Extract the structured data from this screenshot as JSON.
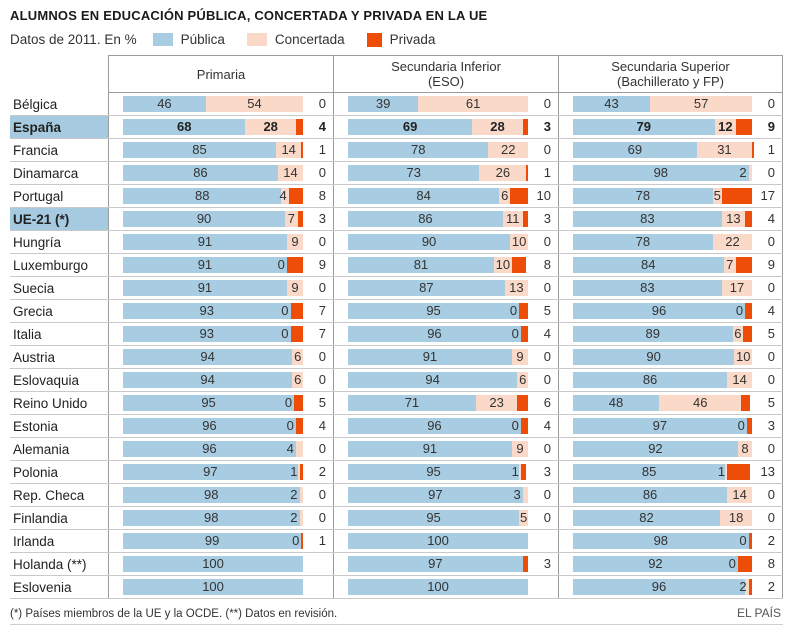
{
  "title": "ALUMNOS EN EDUCACIÓN PÚBLICA, CONCERTADA Y PRIVADA EN LA UE",
  "legend": {
    "note": "Datos de 2011. En %",
    "items": [
      {
        "label": "Pública",
        "color": "#a8cce1"
      },
      {
        "label": "Concertada",
        "color": "#fbd9c8"
      },
      {
        "label": "Privada",
        "color": "#ee4d08"
      }
    ]
  },
  "columns": [
    {
      "title": "Primaria",
      "subtitle": ""
    },
    {
      "title": "Secundaria Inferior",
      "subtitle": "(ESO)"
    },
    {
      "title": "Secundaria Superior",
      "subtitle": "(Bachillerato y FP)"
    }
  ],
  "footnote": "(*) Países miembros de la UE y la OCDE. (**) Datos en revisión.",
  "source": "EL PAÍS",
  "chart_data": {
    "type": "bar",
    "orientation": "horizontal-stacked",
    "unit": "%",
    "series_labels": [
      "Pública",
      "Concertada",
      "Privada"
    ],
    "columns": [
      "Primaria",
      "Secundaria Inferior (ESO)",
      "Secundaria Superior (Bachillerato y FP)"
    ],
    "xlim": [
      0,
      100
    ],
    "highlighted_rows": [
      "España",
      "UE-21 (*)"
    ],
    "rows": [
      {
        "country": "Bélgica",
        "highlight": false,
        "bold_values": false,
        "primaria": {
          "publica": 46,
          "concertada": 54,
          "privada": 0
        },
        "eso": {
          "publica": 39,
          "concertada": 61,
          "privada": 0
        },
        "superior": {
          "publica": 43,
          "concertada": 57,
          "privada": 0
        }
      },
      {
        "country": "España",
        "highlight": true,
        "bold_values": true,
        "primaria": {
          "publica": 68,
          "concertada": 28,
          "privada": 4
        },
        "eso": {
          "publica": 69,
          "concertada": 28,
          "privada": 3
        },
        "superior": {
          "publica": 79,
          "concertada": 12,
          "privada": 9
        }
      },
      {
        "country": "Francia",
        "highlight": false,
        "bold_values": false,
        "primaria": {
          "publica": 85,
          "concertada": 14,
          "privada": 1
        },
        "eso": {
          "publica": 78,
          "concertada": 22,
          "privada": 0
        },
        "superior": {
          "publica": 69,
          "concertada": 31,
          "privada": 1
        }
      },
      {
        "country": "Dinamarca",
        "highlight": false,
        "bold_values": false,
        "primaria": {
          "publica": 86,
          "concertada": 14,
          "privada": 0
        },
        "eso": {
          "publica": 73,
          "concertada": 26,
          "privada": 1
        },
        "superior": {
          "publica": 98,
          "concertada": 2,
          "privada": 0
        }
      },
      {
        "country": "Portugal",
        "highlight": false,
        "bold_values": false,
        "primaria": {
          "publica": 88,
          "concertada": 4,
          "privada": 8
        },
        "eso": {
          "publica": 84,
          "concertada": 6,
          "privada": 10
        },
        "superior": {
          "publica": 78,
          "concertada": 5,
          "privada": 17
        }
      },
      {
        "country": "UE-21 (*)",
        "highlight": true,
        "bold_values": false,
        "primaria": {
          "publica": 90,
          "concertada": 7,
          "privada": 3
        },
        "eso": {
          "publica": 86,
          "concertada": 11,
          "privada": 3
        },
        "superior": {
          "publica": 83,
          "concertada": 13,
          "privada": 4
        }
      },
      {
        "country": "Hungría",
        "highlight": false,
        "bold_values": false,
        "primaria": {
          "publica": 91,
          "concertada": 9,
          "privada": 0
        },
        "eso": {
          "publica": 90,
          "concertada": 10,
          "privada": 0
        },
        "superior": {
          "publica": 78,
          "concertada": 22,
          "privada": 0
        }
      },
      {
        "country": "Luxemburgo",
        "highlight": false,
        "bold_values": false,
        "primaria": {
          "publica": 91,
          "concertada": 0,
          "privada": 9
        },
        "eso": {
          "publica": 81,
          "concertada": 10,
          "privada": 8
        },
        "superior": {
          "publica": 84,
          "concertada": 7,
          "privada": 9
        }
      },
      {
        "country": "Suecia",
        "highlight": false,
        "bold_values": false,
        "primaria": {
          "publica": 91,
          "concertada": 9,
          "privada": 0
        },
        "eso": {
          "publica": 87,
          "concertada": 13,
          "privada": 0
        },
        "superior": {
          "publica": 83,
          "concertada": 17,
          "privada": 0
        }
      },
      {
        "country": "Grecia",
        "highlight": false,
        "bold_values": false,
        "primaria": {
          "publica": 93,
          "concertada": 0,
          "privada": 7
        },
        "eso": {
          "publica": 95,
          "concertada": 0,
          "privada": 5
        },
        "superior": {
          "publica": 96,
          "concertada": 0,
          "privada": 4
        }
      },
      {
        "country": "Italia",
        "highlight": false,
        "bold_values": false,
        "primaria": {
          "publica": 93,
          "concertada": 0,
          "privada": 7
        },
        "eso": {
          "publica": 96,
          "concertada": 0,
          "privada": 4
        },
        "superior": {
          "publica": 89,
          "concertada": 6,
          "privada": 5
        }
      },
      {
        "country": "Austria",
        "highlight": false,
        "bold_values": false,
        "primaria": {
          "publica": 94,
          "concertada": 6,
          "privada": 0
        },
        "eso": {
          "publica": 91,
          "concertada": 9,
          "privada": 0
        },
        "superior": {
          "publica": 90,
          "concertada": 10,
          "privada": 0
        }
      },
      {
        "country": "Eslovaquia",
        "highlight": false,
        "bold_values": false,
        "primaria": {
          "publica": 94,
          "concertada": 6,
          "privada": 0
        },
        "eso": {
          "publica": 94,
          "concertada": 6,
          "privada": 0
        },
        "superior": {
          "publica": 86,
          "concertada": 14,
          "privada": 0
        }
      },
      {
        "country": "Reino Unido",
        "highlight": false,
        "bold_values": false,
        "primaria": {
          "publica": 95,
          "concertada": 0,
          "privada": 5
        },
        "eso": {
          "publica": 71,
          "concertada": 23,
          "privada": 6
        },
        "superior": {
          "publica": 48,
          "concertada": 46,
          "privada": 5
        }
      },
      {
        "country": "Estonia",
        "highlight": false,
        "bold_values": false,
        "primaria": {
          "publica": 96,
          "concertada": 0,
          "privada": 4
        },
        "eso": {
          "publica": 96,
          "concertada": 0,
          "privada": 4
        },
        "superior": {
          "publica": 97,
          "concertada": 0,
          "privada": 3
        }
      },
      {
        "country": "Alemania",
        "highlight": false,
        "bold_values": false,
        "primaria": {
          "publica": 96,
          "concertada": 4,
          "privada": 0
        },
        "eso": {
          "publica": 91,
          "concertada": 9,
          "privada": 0
        },
        "superior": {
          "publica": 92,
          "concertada": 8,
          "privada": 0
        }
      },
      {
        "country": "Polonia",
        "highlight": false,
        "bold_values": false,
        "primaria": {
          "publica": 97,
          "concertada": 1,
          "privada": 2
        },
        "eso": {
          "publica": 95,
          "concertada": 1,
          "privada": 3
        },
        "superior": {
          "publica": 85,
          "concertada": 1,
          "privada": 13
        }
      },
      {
        "country": "Rep. Checa",
        "highlight": false,
        "bold_values": false,
        "primaria": {
          "publica": 98,
          "concertada": 2,
          "privada": 0
        },
        "eso": {
          "publica": 97,
          "concertada": 3,
          "privada": 0
        },
        "superior": {
          "publica": 86,
          "concertada": 14,
          "privada": 0
        }
      },
      {
        "country": "Finlandia",
        "highlight": false,
        "bold_values": false,
        "primaria": {
          "publica": 98,
          "concertada": 2,
          "privada": 0
        },
        "eso": {
          "publica": 95,
          "concertada": 5,
          "privada": 0
        },
        "superior": {
          "publica": 82,
          "concertada": 18,
          "privada": 0
        }
      },
      {
        "country": "Irlanda",
        "highlight": false,
        "bold_values": false,
        "primaria": {
          "publica": 99,
          "concertada": 0,
          "privada": 1
        },
        "eso": {
          "publica": 100,
          "concertada": null,
          "privada": null
        },
        "superior": {
          "publica": 98,
          "concertada": 0,
          "privada": 2
        }
      },
      {
        "country": "Holanda (**)",
        "highlight": false,
        "bold_values": false,
        "primaria": {
          "publica": 100,
          "concertada": null,
          "privada": null
        },
        "eso": {
          "publica": 97,
          "concertada": null,
          "privada": 3
        },
        "superior": {
          "publica": 92,
          "concertada": 0,
          "privada": 8
        }
      },
      {
        "country": "Eslovenia",
        "highlight": false,
        "bold_values": false,
        "primaria": {
          "publica": 100,
          "concertada": null,
          "privada": null
        },
        "eso": {
          "publica": 100,
          "concertada": null,
          "privada": null
        },
        "superior": {
          "publica": 96,
          "concertada": 2,
          "privada": 2
        }
      }
    ]
  }
}
